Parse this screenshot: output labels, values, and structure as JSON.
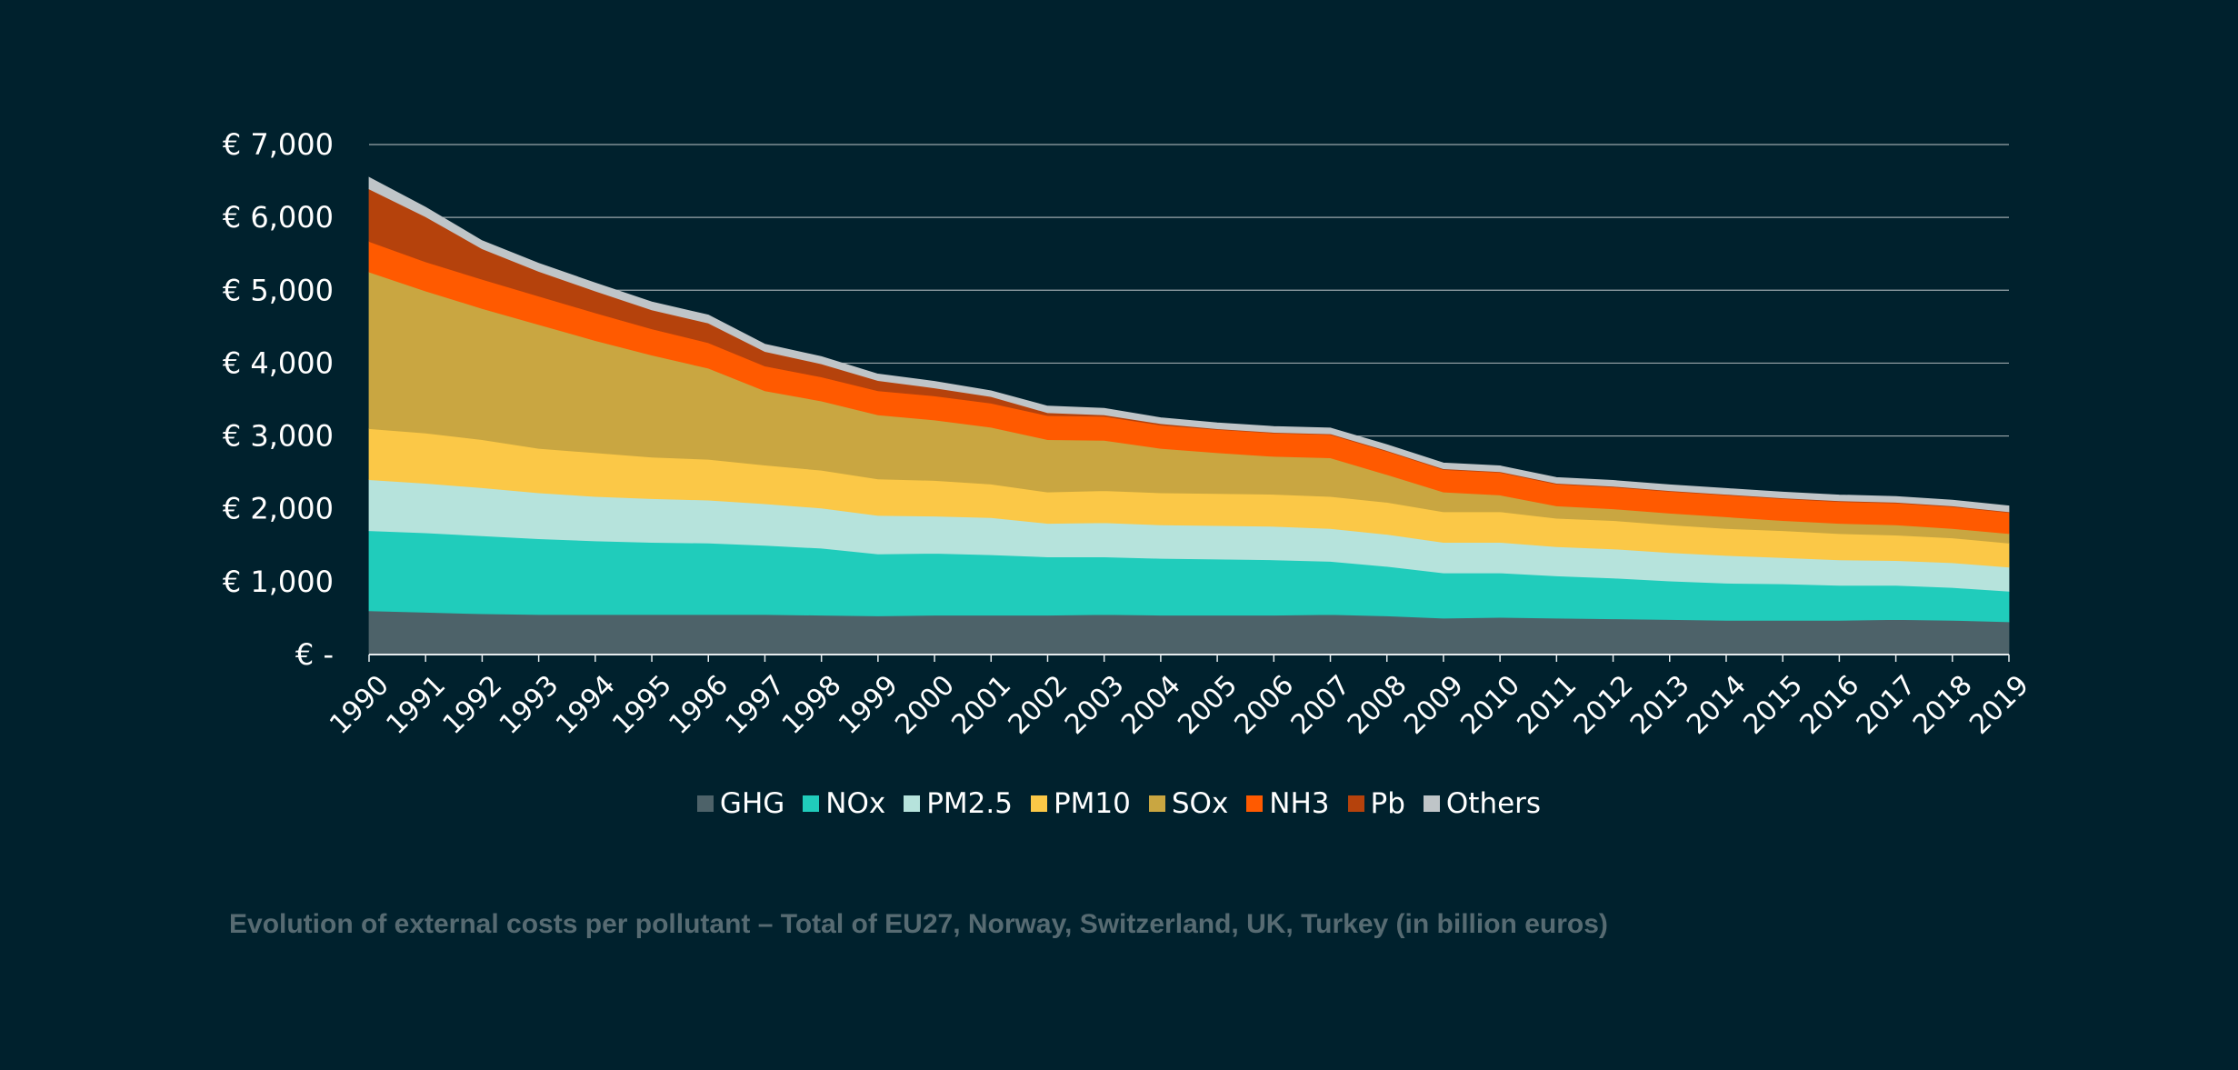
{
  "chart_data": {
    "type": "area",
    "stacked": true,
    "x": [
      "1990",
      "1991",
      "1992",
      "1993",
      "1994",
      "1995",
      "1996",
      "1997",
      "1998",
      "1999",
      "2000",
      "2001",
      "2002",
      "2003",
      "2004",
      "2005",
      "2006",
      "2007",
      "2008",
      "2009",
      "2010",
      "2011",
      "2012",
      "2013",
      "2014",
      "2015",
      "2016",
      "2017",
      "2018",
      "2019"
    ],
    "ylim": [
      0,
      7000
    ],
    "yticks": [
      0,
      1000,
      2000,
      3000,
      4000,
      5000,
      6000,
      7000
    ],
    "ytick_labels": [
      "€ -",
      "€ 1,000",
      "€ 2,000",
      "€ 3,000",
      "€ 4,000",
      "€ 5,000",
      "€ 6,000",
      "€ 7,000"
    ],
    "grid": true,
    "legend_position": "bottom",
    "series": [
      {
        "name": "GHG",
        "color": "#4d6269",
        "values": [
          600,
          580,
          560,
          550,
          550,
          550,
          550,
          550,
          540,
          530,
          540,
          540,
          540,
          550,
          540,
          540,
          540,
          550,
          530,
          500,
          510,
          500,
          490,
          480,
          470,
          470,
          470,
          480,
          470,
          450
        ]
      },
      {
        "name": "NOx",
        "color": "#20ccbb",
        "values": [
          1100,
          1090,
          1070,
          1040,
          1010,
          990,
          980,
          950,
          920,
          850,
          850,
          830,
          800,
          790,
          780,
          770,
          760,
          730,
          680,
          620,
          610,
          580,
          560,
          530,
          510,
          500,
          480,
          470,
          450,
          420
        ]
      },
      {
        "name": "PM2.5",
        "color": "#b6e3dc",
        "values": [
          700,
          680,
          660,
          630,
          610,
          600,
          590,
          570,
          550,
          530,
          510,
          510,
          460,
          470,
          460,
          460,
          460,
          450,
          440,
          420,
          420,
          400,
          400,
          390,
          380,
          360,
          350,
          340,
          340,
          330
        ]
      },
      {
        "name": "PM10",
        "color": "#fbc847",
        "values": [
          700,
          690,
          660,
          610,
          600,
          570,
          560,
          530,
          520,
          500,
          490,
          460,
          430,
          440,
          440,
          440,
          440,
          440,
          440,
          420,
          420,
          390,
          390,
          380,
          370,
          370,
          360,
          350,
          340,
          330
        ]
      },
      {
        "name": "SOx",
        "color": "#c9a641",
        "values": [
          2150,
          1950,
          1800,
          1700,
          1540,
          1400,
          1250,
          1020,
          950,
          880,
          830,
          780,
          720,
          690,
          610,
          560,
          520,
          530,
          380,
          270,
          230,
          170,
          160,
          160,
          160,
          140,
          140,
          140,
          130,
          130
        ]
      },
      {
        "name": "NH3",
        "color": "#ff5a00",
        "values": [
          420,
          400,
          400,
          390,
          380,
          360,
          350,
          340,
          330,
          330,
          330,
          330,
          330,
          330,
          320,
          320,
          320,
          320,
          320,
          310,
          310,
          300,
          300,
          300,
          300,
          300,
          300,
          300,
          300,
          290
        ]
      },
      {
        "name": "Pb",
        "color": "#b5420c",
        "values": [
          720,
          620,
          420,
          340,
          300,
          260,
          270,
          200,
          180,
          140,
          110,
          90,
          40,
          20,
          20,
          10,
          10,
          10,
          10,
          10,
          10,
          10,
          10,
          10,
          10,
          10,
          10,
          10,
          10,
          10
        ]
      },
      {
        "name": "Others",
        "color": "#bfc5c8",
        "values": [
          160,
          130,
          110,
          110,
          110,
          110,
          110,
          100,
          100,
          90,
          90,
          80,
          90,
          90,
          80,
          80,
          80,
          80,
          80,
          80,
          80,
          80,
          80,
          80,
          80,
          80,
          80,
          80,
          80,
          80
        ]
      }
    ]
  },
  "caption": "Evolution of external costs per pollutant – Total of EU27, Norway, Switzerland, UK, Turkey (in billion euros)"
}
